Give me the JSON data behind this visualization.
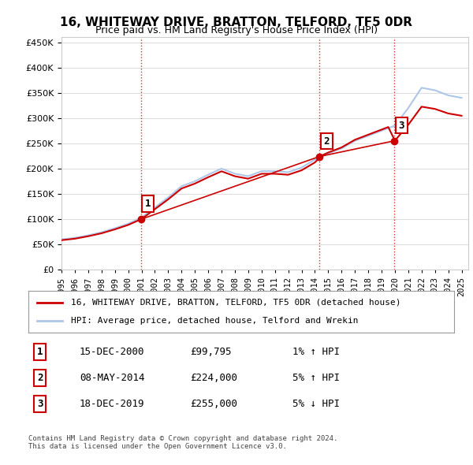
{
  "title": "16, WHITEWAY DRIVE, BRATTON, TELFORD, TF5 0DR",
  "subtitle": "Price paid vs. HM Land Registry's House Price Index (HPI)",
  "ylabel_ticks": [
    "£0",
    "£50K",
    "£100K",
    "£150K",
    "£200K",
    "£250K",
    "£300K",
    "£350K",
    "£400K",
    "£450K"
  ],
  "ytick_values": [
    0,
    50000,
    100000,
    150000,
    200000,
    250000,
    300000,
    350000,
    400000,
    450000
  ],
  "ylim": [
    0,
    460000
  ],
  "xlim_start": 1995.0,
  "xlim_end": 2025.5,
  "hpi_color": "#aec6e8",
  "price_color": "#cc0000",
  "marker_color": "#cc0000",
  "purchases": [
    {
      "year_dec": 2000.96,
      "price": 99795,
      "label": "1"
    },
    {
      "year_dec": 2014.35,
      "price": 224000,
      "label": "2"
    },
    {
      "year_dec": 2019.96,
      "price": 255000,
      "label": "3"
    }
  ],
  "vline_years": [
    2000.96,
    2014.35,
    2019.96
  ],
  "vline_color": "#cc0000",
  "legend_line1": "16, WHITEWAY DRIVE, BRATTON, TELFORD, TF5 0DR (detached house)",
  "legend_line2": "HPI: Average price, detached house, Telford and Wrekin",
  "table_rows": [
    [
      "1",
      "15-DEC-2000",
      "£99,795",
      "1% ↑ HPI"
    ],
    [
      "2",
      "08-MAY-2014",
      "£224,000",
      "5% ↑ HPI"
    ],
    [
      "3",
      "18-DEC-2019",
      "£255,000",
      "5% ↓ HPI"
    ]
  ],
  "footnote": "Contains HM Land Registry data © Crown copyright and database right 2024.\nThis data is licensed under the Open Government Licence v3.0.",
  "background_color": "#ffffff",
  "plot_bg_color": "#ffffff",
  "grid_color": "#dddddd",
  "hpi_data": {
    "years": [
      1995,
      1996,
      1997,
      1998,
      1999,
      2000,
      2001,
      2002,
      2003,
      2004,
      2005,
      2006,
      2007,
      2008,
      2009,
      2010,
      2011,
      2012,
      2013,
      2014,
      2015,
      2016,
      2017,
      2018,
      2019,
      2020,
      2021,
      2022,
      2023,
      2024,
      2025
    ],
    "values": [
      60000,
      63000,
      68000,
      74000,
      82000,
      91000,
      103000,
      123000,
      143000,
      165000,
      175000,
      188000,
      200000,
      190000,
      185000,
      195000,
      195000,
      193000,
      202000,
      218000,
      230000,
      240000,
      255000,
      265000,
      275000,
      285000,
      320000,
      360000,
      355000,
      345000,
      340000
    ]
  },
  "price_paid_data": {
    "year_months": [
      2000.96,
      2014.35,
      2019.96
    ],
    "values": [
      99795,
      224000,
      255000
    ]
  },
  "hpi_line_extended_years": [
    1995.0,
    1995.5,
    1996.0,
    1996.5,
    1997.0,
    1997.5,
    1998.0,
    1998.5,
    1999.0,
    1999.5,
    2000.0,
    2000.5,
    2001.0,
    2001.5,
    2002.0,
    2002.5,
    2003.0,
    2003.5,
    2004.0,
    2004.5,
    2005.0,
    2005.5,
    2006.0,
    2006.5,
    2007.0,
    2007.5,
    2008.0,
    2008.5,
    2009.0,
    2009.5,
    2010.0,
    2010.5,
    2011.0,
    2011.5,
    2012.0,
    2012.5,
    2013.0,
    2013.5,
    2014.0,
    2014.5,
    2015.0,
    2015.5,
    2016.0,
    2016.5,
    2017.0,
    2017.5,
    2018.0,
    2018.5,
    2019.0,
    2019.5,
    2020.0,
    2020.5,
    2021.0,
    2021.5,
    2022.0,
    2022.5,
    2023.0,
    2023.5,
    2024.0,
    2024.5,
    2025.0
  ],
  "hpi_line_values": [
    60000,
    61500,
    63000,
    65500,
    68000,
    71000,
    74000,
    78000,
    82000,
    86500,
    91000,
    97000,
    103000,
    113000,
    123000,
    133000,
    143000,
    154000,
    165000,
    170000,
    175000,
    181500,
    188000,
    194000,
    200000,
    195000,
    190000,
    187500,
    185000,
    190000,
    195000,
    195000,
    195000,
    194000,
    193000,
    197500,
    202000,
    210000,
    218000,
    224000,
    230000,
    235000,
    240000,
    247500,
    255000,
    260000,
    265000,
    270000,
    275000,
    280000,
    285000,
    302500,
    320000,
    340000,
    360000,
    357500,
    355000,
    350000,
    345000,
    342500,
    340000
  ]
}
